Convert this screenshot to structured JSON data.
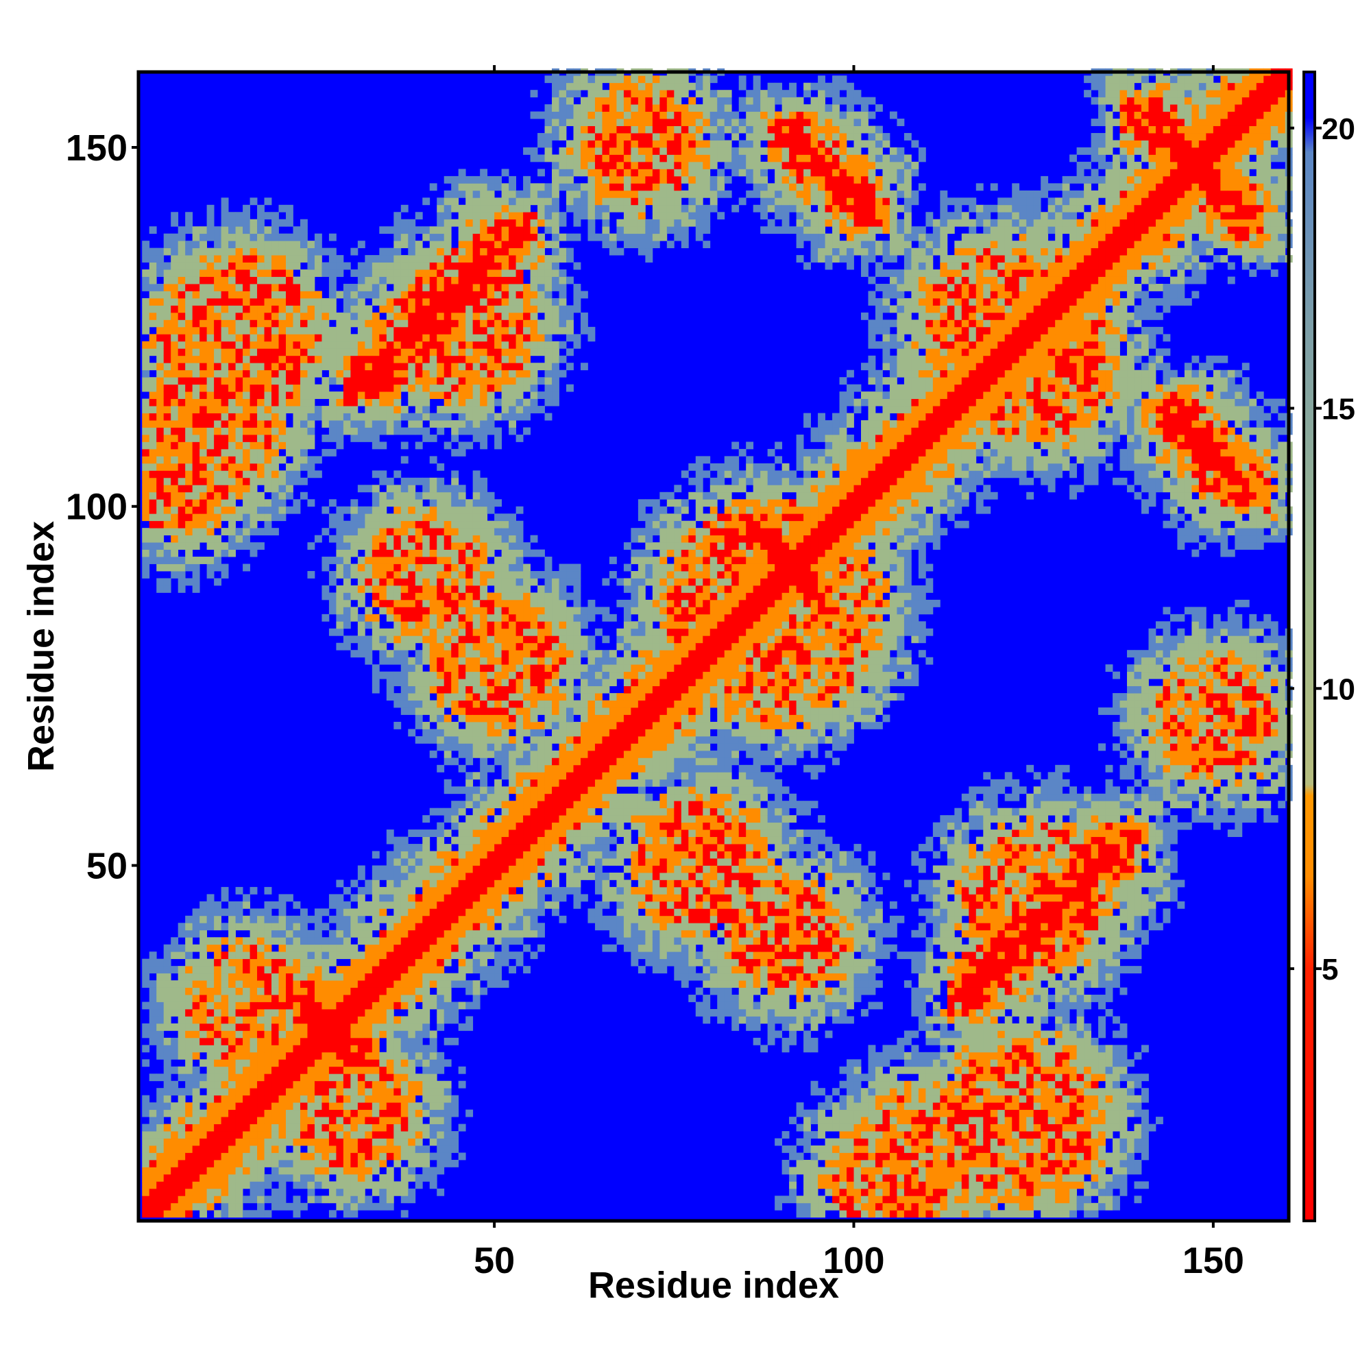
{
  "chart_data": {
    "type": "heatmap",
    "title": "",
    "xlabel": "Residue index",
    "ylabel": "Residue index",
    "xlim": [
      1,
      160
    ],
    "ylim": [
      1,
      160
    ],
    "x_ticks": [
      "50",
      "100",
      "150"
    ],
    "y_ticks": [
      "50",
      "100",
      "150"
    ],
    "colorbar": {
      "ticks": [
        "5",
        "10",
        "15",
        "20"
      ],
      "range": [
        0.5,
        21
      ],
      "colors": {
        "close": "#ff0000",
        "near": "#ff8c00",
        "mid": "#9fb98a",
        "far": "#5b86c6",
        "background": "#0000ff"
      }
    },
    "contact_features": [
      {
        "kind": "diagonal",
        "from": 1,
        "to": 160
      },
      {
        "kind": "antiparallel",
        "center": [
          90,
          92
        ],
        "length": 14
      },
      {
        "kind": "antiparallel",
        "center": [
          96,
          146
        ],
        "length": 16
      },
      {
        "kind": "antiparallel",
        "center": [
          147,
          147
        ],
        "length": 22
      },
      {
        "kind": "antiparallel",
        "center": [
          149,
          107
        ],
        "length": 16
      },
      {
        "kind": "antiparallel",
        "center": [
          26,
          27
        ],
        "length": 14
      },
      {
        "kind": "parallel",
        "center": [
          42,
          127
        ],
        "length": 30
      },
      {
        "kind": "parallel",
        "center": [
          126,
          42
        ],
        "length": 30
      },
      {
        "kind": "blob",
        "center": [
          14,
          123
        ],
        "radius": 10
      },
      {
        "kind": "blob",
        "center": [
          123,
          14
        ],
        "radius": 10
      },
      {
        "kind": "blob",
        "center": [
          6,
          103
        ],
        "radius": 6
      },
      {
        "kind": "blob",
        "center": [
          103,
          6
        ],
        "radius": 6
      },
      {
        "kind": "blob",
        "center": [
          88,
          85
        ],
        "radius": 14
      },
      {
        "kind": "blob",
        "center": [
          50,
          78
        ],
        "radius": 8
      },
      {
        "kind": "blob",
        "center": [
          78,
          50
        ],
        "radius": 8
      },
      {
        "kind": "blob",
        "center": [
          125,
          120
        ],
        "radius": 10
      },
      {
        "kind": "blob",
        "center": [
          120,
          125
        ],
        "radius": 10
      },
      {
        "kind": "blob",
        "center": [
          40,
          90
        ],
        "radius": 7
      },
      {
        "kind": "blob",
        "center": [
          90,
          40
        ],
        "radius": 7
      },
      {
        "kind": "blob",
        "center": [
          110,
          10
        ],
        "radius": 8
      },
      {
        "kind": "blob",
        "center": [
          10,
          110
        ],
        "radius": 8
      },
      {
        "kind": "blob",
        "center": [
          125,
          45
        ],
        "radius": 9
      },
      {
        "kind": "blob",
        "center": [
          45,
          125
        ],
        "radius": 9
      },
      {
        "kind": "blob",
        "center": [
          150,
          70
        ],
        "radius": 7
      },
      {
        "kind": "blob",
        "center": [
          70,
          150
        ],
        "radius": 7
      },
      {
        "kind": "blob",
        "center": [
          30,
          15
        ],
        "radius": 7
      },
      {
        "kind": "blob",
        "center": [
          15,
          30
        ],
        "radius": 7
      }
    ]
  }
}
